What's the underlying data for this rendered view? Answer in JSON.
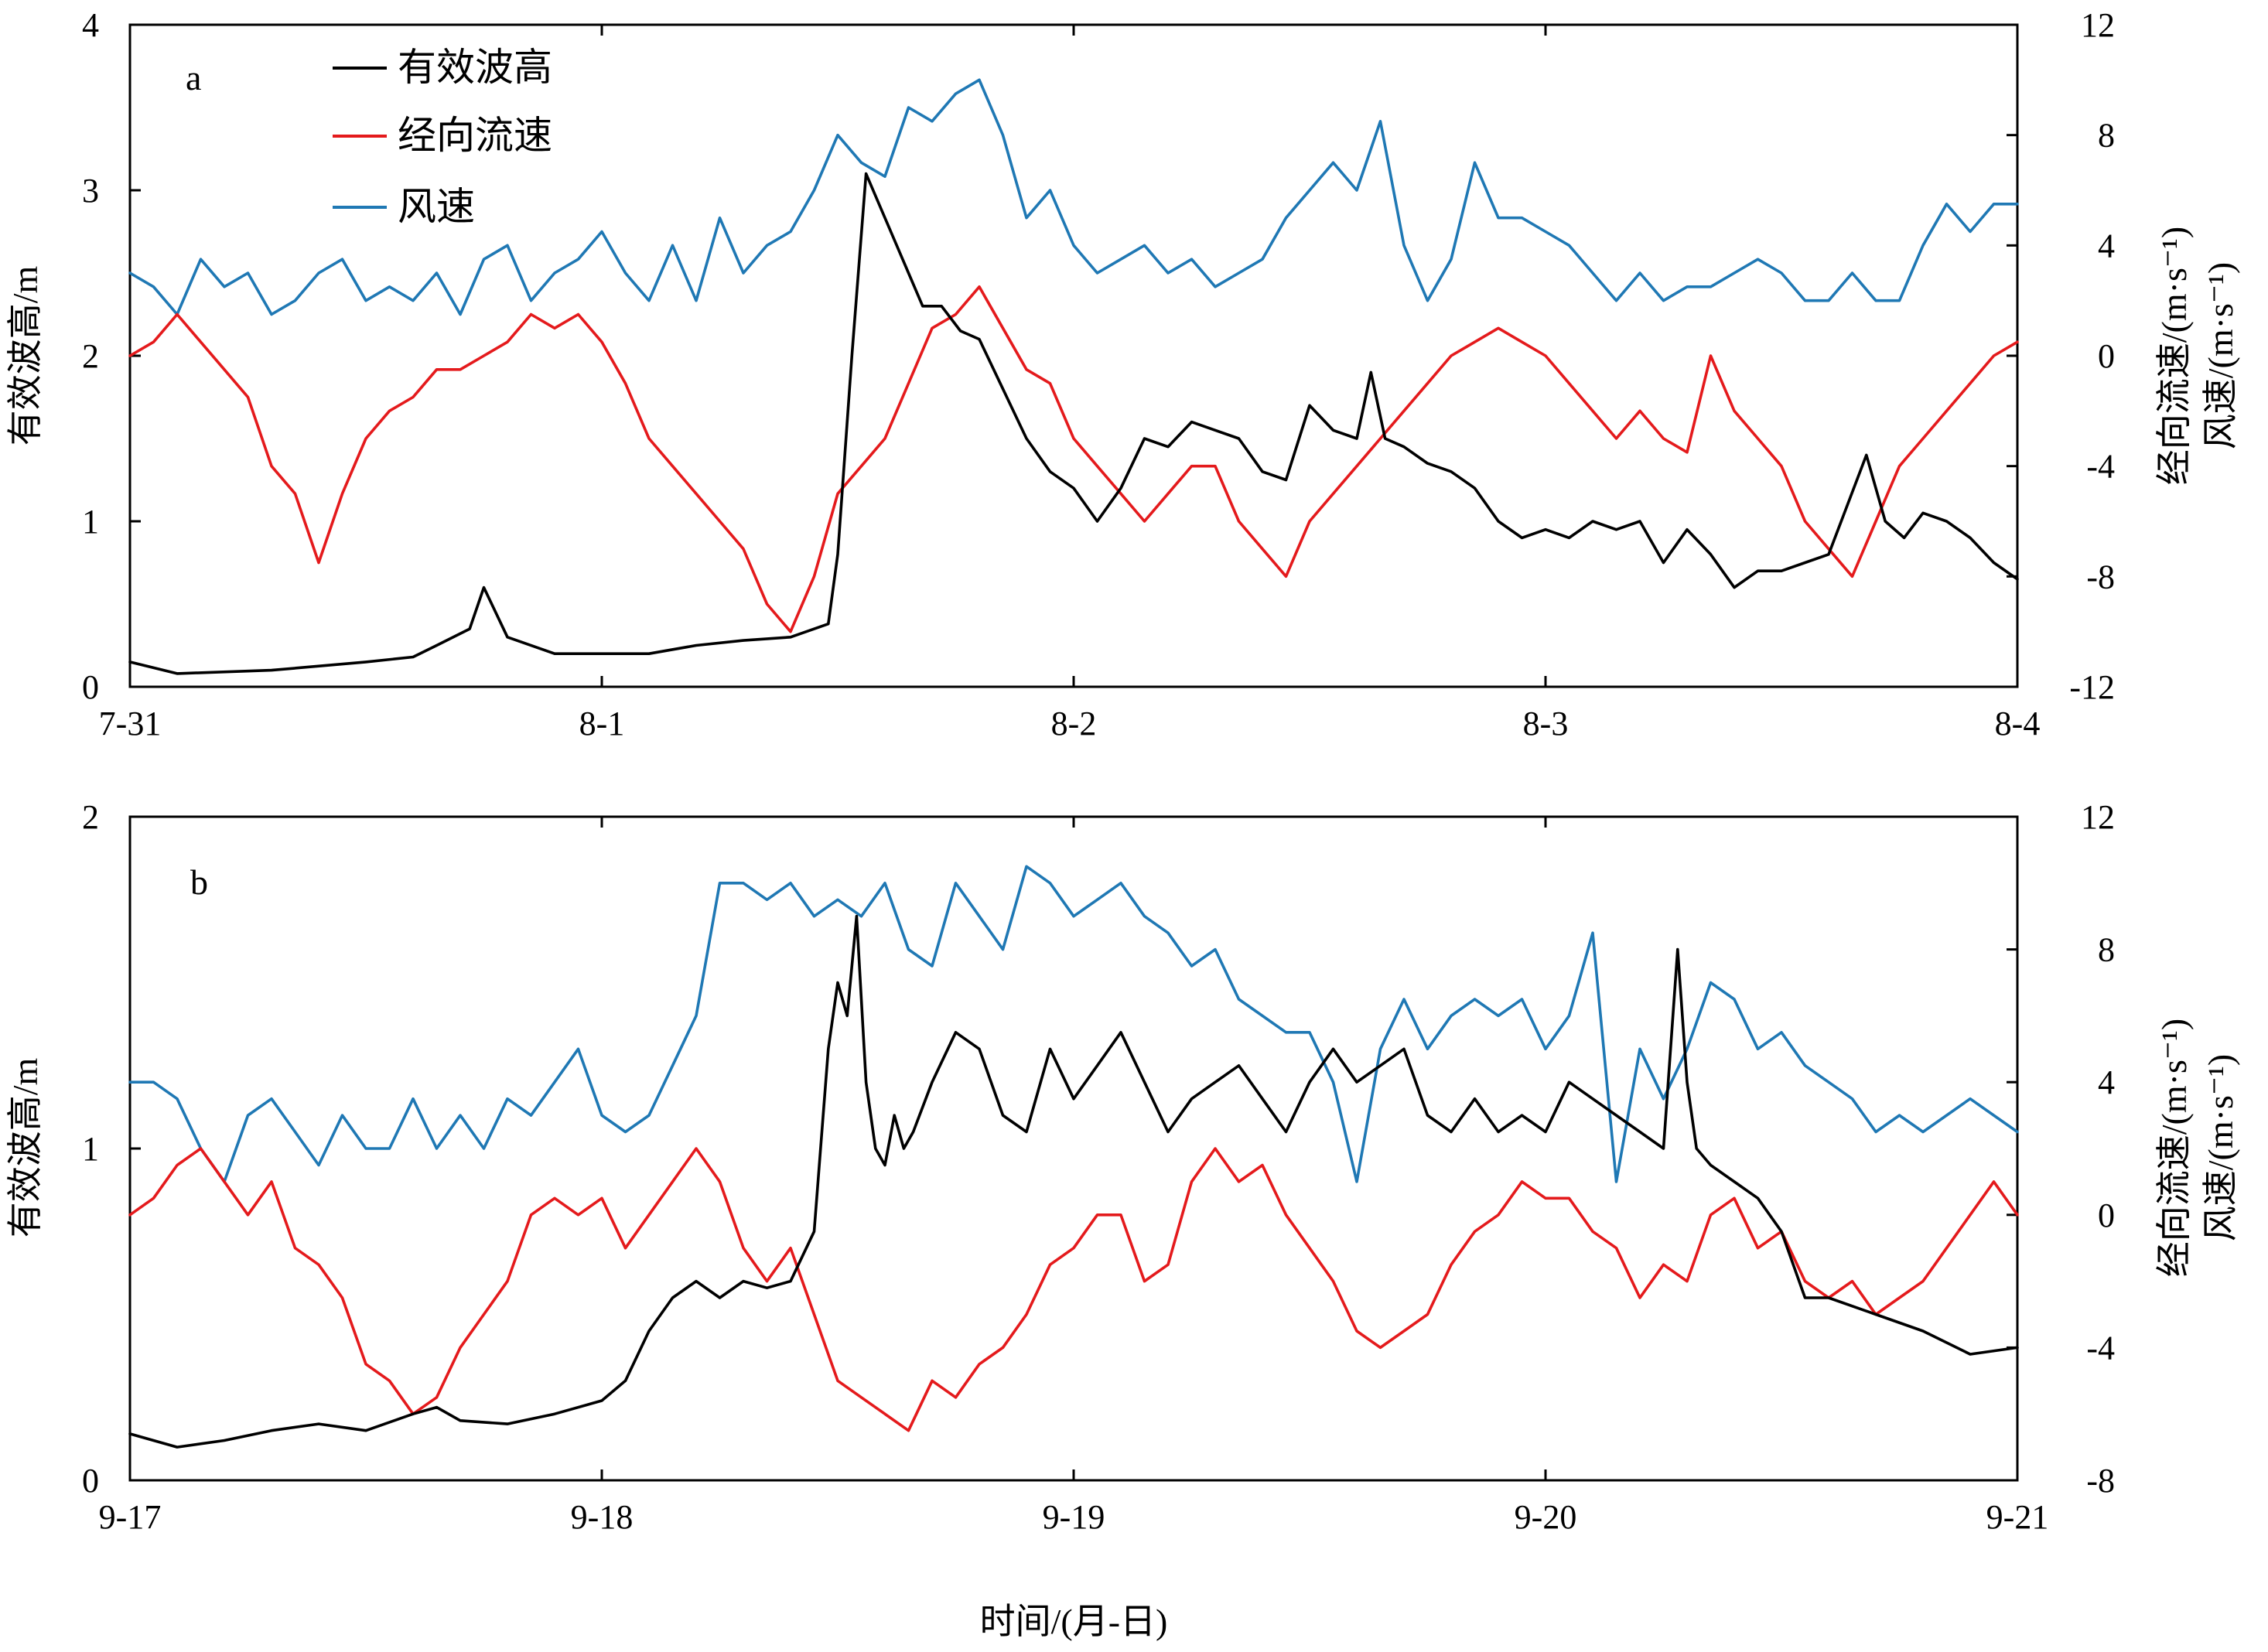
{
  "chart_data": [
    {
      "type": "line",
      "panel_label": "a",
      "x_ticks": [
        "7-31",
        "8-1",
        "8-2",
        "8-3",
        "8-4"
      ],
      "xlim": [
        0,
        4
      ],
      "ylabel_left": "有效波高/m",
      "ylim_left": [
        0,
        4
      ],
      "yticks_left": [
        0,
        1,
        2,
        3,
        4
      ],
      "ylabel_right_1": "经向流速/(m·s⁻¹)",
      "ylabel_right_2": "风速/(m·s⁻¹)",
      "ylim_right": [
        -12,
        12
      ],
      "yticks_right": [
        -12,
        -8,
        -4,
        0,
        4,
        8,
        12
      ],
      "legend": {
        "placement": "top-left",
        "entries": [
          "有效波高",
          "经向流速",
          "风速"
        ]
      },
      "series": [
        {
          "name": "有效波高",
          "color": "#000000",
          "axis": "left",
          "x": [
            0,
            0.1,
            0.3,
            0.5,
            0.6,
            0.65,
            0.72,
            0.75,
            0.8,
            0.9,
            1.0,
            1.1,
            1.2,
            1.3,
            1.4,
            1.48,
            1.5,
            1.53,
            1.56,
            1.59,
            1.62,
            1.65,
            1.68,
            1.72,
            1.76,
            1.8,
            1.85,
            1.9,
            1.95,
            2.0,
            2.05,
            2.1,
            2.15,
            2.2,
            2.25,
            2.3,
            2.35,
            2.4,
            2.45,
            2.5,
            2.55,
            2.6,
            2.63,
            2.66,
            2.7,
            2.75,
            2.8,
            2.85,
            2.9,
            2.95,
            3.0,
            3.05,
            3.1,
            3.15,
            3.2,
            3.25,
            3.3,
            3.35,
            3.4,
            3.45,
            3.5,
            3.55,
            3.6,
            3.64,
            3.68,
            3.72,
            3.76,
            3.8,
            3.85,
            3.9,
            3.95,
            4.0
          ],
          "y": [
            0.15,
            0.08,
            0.1,
            0.15,
            0.18,
            0.25,
            0.35,
            0.6,
            0.3,
            0.2,
            0.2,
            0.2,
            0.25,
            0.28,
            0.3,
            0.38,
            0.8,
            2.0,
            3.1,
            2.9,
            2.7,
            2.5,
            2.3,
            2.3,
            2.15,
            2.1,
            1.8,
            1.5,
            1.3,
            1.2,
            1.0,
            1.2,
            1.5,
            1.45,
            1.6,
            1.55,
            1.5,
            1.3,
            1.25,
            1.7,
            1.55,
            1.5,
            1.9,
            1.5,
            1.45,
            1.35,
            1.3,
            1.2,
            1.0,
            0.9,
            0.95,
            0.9,
            1.0,
            0.95,
            1.0,
            0.75,
            0.95,
            0.8,
            0.6,
            0.7,
            0.7,
            0.75,
            0.8,
            1.1,
            1.4,
            1.0,
            0.9,
            1.05,
            1.0,
            0.9,
            0.75,
            0.65
          ]
        },
        {
          "name": "经向流速",
          "color": "#e41a1c",
          "axis": "right",
          "x": [
            0,
            0.05,
            0.1,
            0.15,
            0.2,
            0.25,
            0.3,
            0.35,
            0.4,
            0.45,
            0.5,
            0.55,
            0.6,
            0.65,
            0.7,
            0.75,
            0.8,
            0.85,
            0.9,
            0.95,
            1.0,
            1.05,
            1.1,
            1.15,
            1.2,
            1.25,
            1.3,
            1.35,
            1.4,
            1.45,
            1.5,
            1.55,
            1.6,
            1.65,
            1.7,
            1.75,
            1.8,
            1.85,
            1.9,
            1.95,
            2.0,
            2.05,
            2.1,
            2.15,
            2.2,
            2.25,
            2.3,
            2.35,
            2.4,
            2.45,
            2.5,
            2.55,
            2.6,
            2.65,
            2.7,
            2.75,
            2.8,
            2.85,
            2.9,
            2.95,
            3.0,
            3.05,
            3.1,
            3.15,
            3.2,
            3.25,
            3.3,
            3.35,
            3.4,
            3.45,
            3.5,
            3.55,
            3.6,
            3.65,
            3.7,
            3.75,
            3.8,
            3.85,
            3.9,
            3.95,
            4.0
          ],
          "y": [
            0,
            0.5,
            1.5,
            0.5,
            -0.5,
            -1.5,
            -4,
            -5,
            -7.5,
            -5,
            -3,
            -2,
            -1.5,
            -0.5,
            -0.5,
            0,
            0.5,
            1.5,
            1,
            1.5,
            0.5,
            -1,
            -3,
            -4,
            -5,
            -6,
            -7,
            -9,
            -10,
            -8,
            -5,
            -4,
            -3,
            -1,
            1,
            1.5,
            2.5,
            1,
            -0.5,
            -1,
            -3,
            -4,
            -5,
            -6,
            -5,
            -4,
            -4,
            -6,
            -7,
            -8,
            -6,
            -5,
            -4,
            -3,
            -2,
            -1,
            0,
            0.5,
            1,
            0.5,
            0,
            -1,
            -2,
            -3,
            -2,
            -3,
            -3.5,
            0,
            -2,
            -3,
            -4,
            -6,
            -7,
            -8,
            -6,
            -4,
            -3,
            -2,
            -1,
            0,
            0.5
          ]
        },
        {
          "name": "风速",
          "color": "#1f78b4",
          "axis": "right",
          "x": [
            0,
            0.05,
            0.1,
            0.15,
            0.2,
            0.25,
            0.3,
            0.35,
            0.4,
            0.45,
            0.5,
            0.55,
            0.6,
            0.65,
            0.7,
            0.75,
            0.8,
            0.85,
            0.9,
            0.95,
            1.0,
            1.05,
            1.1,
            1.15,
            1.2,
            1.25,
            1.3,
            1.35,
            1.4,
            1.45,
            1.5,
            1.55,
            1.6,
            1.65,
            1.7,
            1.75,
            1.8,
            1.85,
            1.9,
            1.95,
            2.0,
            2.05,
            2.1,
            2.15,
            2.2,
            2.25,
            2.3,
            2.35,
            2.4,
            2.45,
            2.5,
            2.55,
            2.6,
            2.65,
            2.7,
            2.75,
            2.8,
            2.85,
            2.9,
            2.95,
            3.0,
            3.05,
            3.1,
            3.15,
            3.2,
            3.25,
            3.3,
            3.35,
            3.4,
            3.45,
            3.5,
            3.55,
            3.6,
            3.65,
            3.7,
            3.75,
            3.8,
            3.85,
            3.9,
            3.95,
            4.0
          ],
          "y": [
            3,
            2.5,
            1.5,
            3.5,
            2.5,
            3,
            1.5,
            2,
            3,
            3.5,
            2,
            2.5,
            2,
            3,
            1.5,
            3.5,
            4,
            2,
            3,
            3.5,
            4.5,
            3,
            2,
            4,
            2,
            5,
            3,
            4,
            4.5,
            6,
            8,
            7,
            6.5,
            9,
            8.5,
            9.5,
            10,
            8,
            5,
            6,
            4,
            3,
            3.5,
            4,
            3,
            3.5,
            2.5,
            3,
            3.5,
            5,
            6,
            7,
            6,
            8.5,
            4,
            2,
            3.5,
            7,
            5,
            5,
            4.5,
            4,
            3,
            2,
            3,
            2,
            2.5,
            2.5,
            3,
            3.5,
            3,
            2,
            2,
            3,
            2,
            2,
            4,
            5.5,
            4.5,
            5.5,
            5.5
          ]
        }
      ]
    },
    {
      "type": "line",
      "panel_label": "b",
      "x_ticks": [
        "9-17",
        "9-18",
        "9-19",
        "9-20",
        "9-21"
      ],
      "xlim": [
        0,
        4
      ],
      "xlabel": "时间/(月-日)",
      "ylabel_left": "有效波高/m",
      "ylim_left": [
        0,
        2
      ],
      "yticks_left": [
        0,
        1,
        2
      ],
      "ylabel_right_1": "经向流速/(m·s⁻¹)",
      "ylabel_right_2": "风速/(m·s⁻¹)",
      "ylim_right": [
        -8,
        12
      ],
      "yticks_right": [
        -8,
        -4,
        0,
        4,
        8,
        12
      ],
      "series": [
        {
          "name": "有效波高",
          "color": "#000000",
          "axis": "left",
          "x": [
            0,
            0.1,
            0.2,
            0.3,
            0.4,
            0.5,
            0.6,
            0.65,
            0.7,
            0.8,
            0.9,
            1.0,
            1.05,
            1.1,
            1.15,
            1.2,
            1.25,
            1.3,
            1.35,
            1.4,
            1.45,
            1.48,
            1.5,
            1.52,
            1.54,
            1.56,
            1.58,
            1.6,
            1.62,
            1.64,
            1.66,
            1.7,
            1.75,
            1.8,
            1.85,
            1.9,
            1.95,
            2.0,
            2.05,
            2.1,
            2.15,
            2.2,
            2.25,
            2.3,
            2.35,
            2.4,
            2.45,
            2.5,
            2.55,
            2.6,
            2.65,
            2.7,
            2.75,
            2.8,
            2.85,
            2.9,
            2.95,
            3.0,
            3.05,
            3.1,
            3.15,
            3.2,
            3.25,
            3.28,
            3.3,
            3.32,
            3.35,
            3.4,
            3.45,
            3.5,
            3.55,
            3.6,
            3.7,
            3.8,
            3.9,
            4.0
          ],
          "y": [
            0.14,
            0.1,
            0.12,
            0.15,
            0.17,
            0.15,
            0.2,
            0.22,
            0.18,
            0.17,
            0.2,
            0.24,
            0.3,
            0.45,
            0.55,
            0.6,
            0.55,
            0.6,
            0.58,
            0.6,
            0.75,
            1.3,
            1.5,
            1.4,
            1.7,
            1.2,
            1.0,
            0.95,
            1.1,
            1.0,
            1.05,
            1.2,
            1.35,
            1.3,
            1.1,
            1.05,
            1.3,
            1.15,
            1.25,
            1.35,
            1.2,
            1.05,
            1.15,
            1.2,
            1.25,
            1.15,
            1.05,
            1.2,
            1.3,
            1.2,
            1.25,
            1.3,
            1.1,
            1.05,
            1.15,
            1.05,
            1.1,
            1.05,
            1.2,
            1.15,
            1.1,
            1.05,
            1.0,
            1.6,
            1.2,
            1.0,
            0.95,
            0.9,
            0.85,
            0.75,
            0.55,
            0.55,
            0.5,
            0.45,
            0.38,
            0.4
          ]
        },
        {
          "name": "经向流速",
          "color": "#e41a1c",
          "axis": "right",
          "x": [
            0,
            0.05,
            0.1,
            0.15,
            0.2,
            0.25,
            0.3,
            0.35,
            0.4,
            0.45,
            0.5,
            0.55,
            0.6,
            0.65,
            0.7,
            0.75,
            0.8,
            0.85,
            0.9,
            0.95,
            1.0,
            1.05,
            1.1,
            1.15,
            1.2,
            1.25,
            1.3,
            1.35,
            1.4,
            1.45,
            1.5,
            1.55,
            1.6,
            1.65,
            1.7,
            1.75,
            1.8,
            1.85,
            1.9,
            1.95,
            2.0,
            2.05,
            2.1,
            2.15,
            2.2,
            2.25,
            2.3,
            2.35,
            2.4,
            2.45,
            2.5,
            2.55,
            2.6,
            2.65,
            2.7,
            2.75,
            2.8,
            2.85,
            2.9,
            2.95,
            3.0,
            3.05,
            3.1,
            3.15,
            3.2,
            3.25,
            3.3,
            3.35,
            3.4,
            3.45,
            3.5,
            3.55,
            3.6,
            3.65,
            3.7,
            3.75,
            3.8,
            3.85,
            3.9,
            3.95,
            4.0
          ],
          "y": [
            0,
            0.5,
            1.5,
            2,
            1,
            0,
            1,
            -1,
            -1.5,
            -2.5,
            -4.5,
            -5,
            -6,
            -5.5,
            -4,
            -3,
            -2,
            0,
            0.5,
            0,
            0.5,
            -1,
            0,
            1,
            2,
            1,
            -1,
            -2,
            -1,
            -3,
            -5,
            -5.5,
            -6,
            -6.5,
            -5,
            -5.5,
            -4.5,
            -4,
            -3,
            -1.5,
            -1,
            0,
            0,
            -2,
            -1.5,
            1,
            2,
            1,
            1.5,
            0,
            -1,
            -2,
            -3.5,
            -4,
            -3.5,
            -3,
            -1.5,
            -0.5,
            0,
            1,
            0.5,
            0.5,
            -0.5,
            -1,
            -2.5,
            -1.5,
            -2,
            0,
            0.5,
            -1,
            -0.5,
            -2,
            -2.5,
            -2,
            -3,
            -2.5,
            -2,
            -1,
            0,
            1,
            0
          ]
        },
        {
          "name": "风速",
          "color": "#1f78b4",
          "axis": "right",
          "x": [
            0,
            0.05,
            0.1,
            0.15,
            0.2,
            0.25,
            0.3,
            0.35,
            0.4,
            0.45,
            0.5,
            0.55,
            0.6,
            0.65,
            0.7,
            0.75,
            0.8,
            0.85,
            0.9,
            0.95,
            1.0,
            1.05,
            1.1,
            1.15,
            1.2,
            1.25,
            1.3,
            1.35,
            1.4,
            1.45,
            1.5,
            1.55,
            1.6,
            1.65,
            1.7,
            1.75,
            1.8,
            1.85,
            1.9,
            1.95,
            2.0,
            2.05,
            2.1,
            2.15,
            2.2,
            2.25,
            2.3,
            2.35,
            2.4,
            2.45,
            2.5,
            2.55,
            2.6,
            2.65,
            2.7,
            2.75,
            2.8,
            2.85,
            2.9,
            2.95,
            3.0,
            3.05,
            3.1,
            3.15,
            3.2,
            3.25,
            3.3,
            3.35,
            3.4,
            3.45,
            3.5,
            3.55,
            3.6,
            3.65,
            3.7,
            3.75,
            3.8,
            3.85,
            3.9,
            3.95,
            4.0
          ],
          "y": [
            4,
            4,
            3.5,
            2,
            1,
            3,
            3.5,
            2.5,
            1.5,
            3,
            2,
            2,
            3.5,
            2,
            3,
            2,
            3.5,
            3,
            4,
            5,
            3,
            2.5,
            3,
            4.5,
            6,
            10,
            10,
            9.5,
            10,
            9,
            9.5,
            9,
            10,
            8,
            7.5,
            10,
            9,
            8,
            10.5,
            10,
            9,
            9.5,
            10,
            9,
            8.5,
            7.5,
            8,
            6.5,
            6,
            5.5,
            5.5,
            4,
            1,
            5,
            6.5,
            5,
            6,
            6.5,
            6,
            6.5,
            5,
            6,
            8.5,
            1,
            5,
            3.5,
            5,
            7,
            6.5,
            5,
            5.5,
            4.5,
            4,
            3.5,
            2.5,
            3,
            2.5,
            3,
            3.5,
            3,
            2.5
          ]
        }
      ]
    }
  ]
}
